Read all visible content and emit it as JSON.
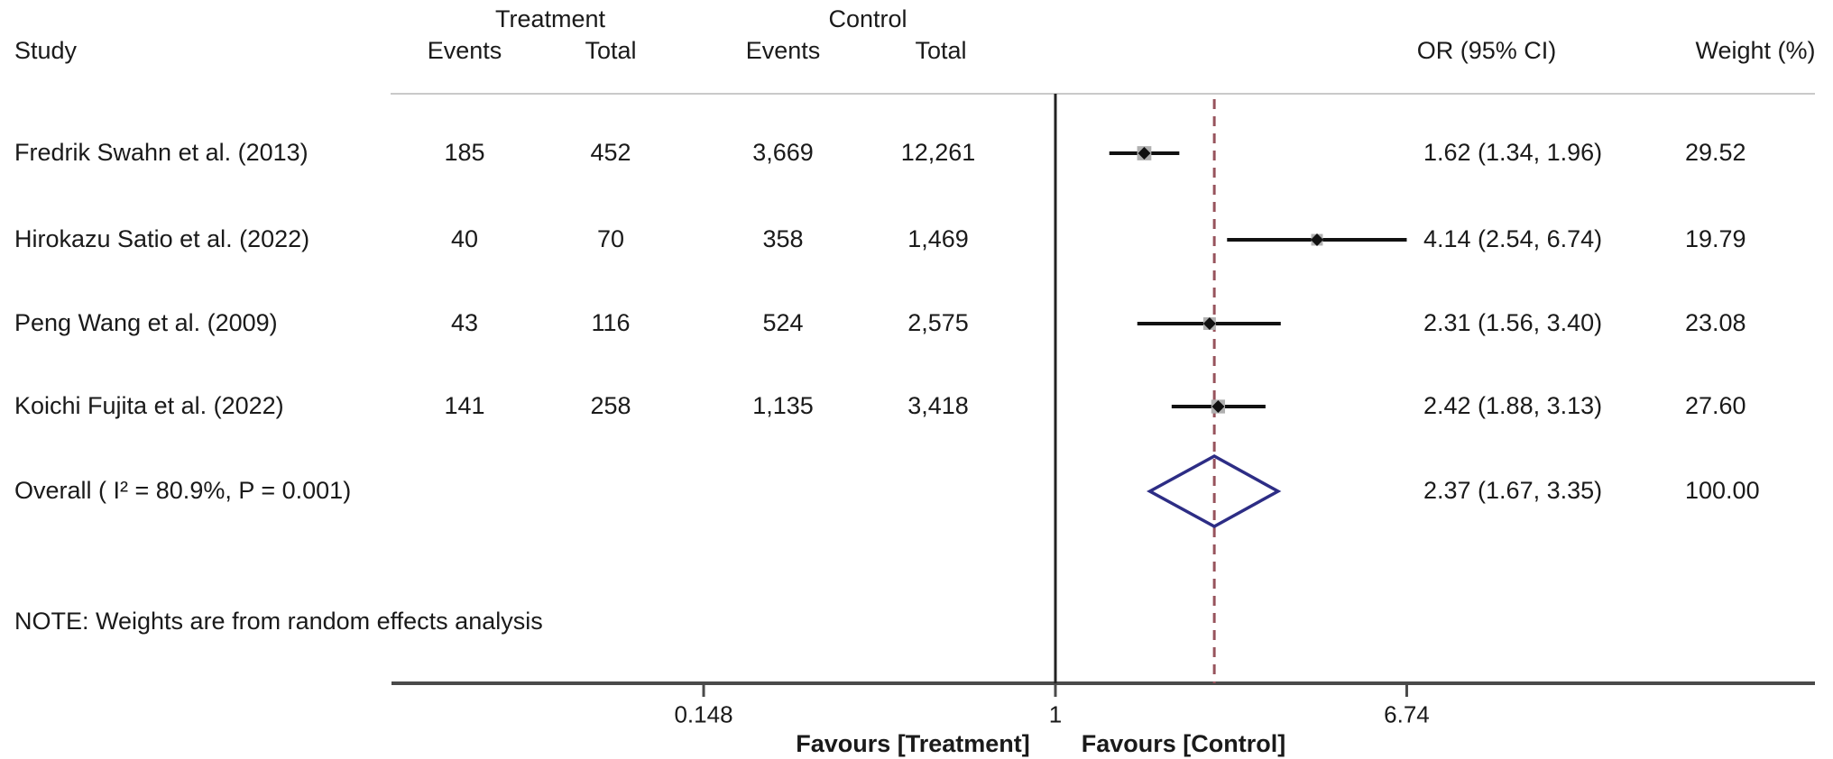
{
  "header": {
    "study": "Study",
    "treatment_group": "Treatment",
    "control_group": "Control",
    "events": "Events",
    "total": "Total",
    "or_ci": "OR (95% CI)",
    "weight": "Weight (%)"
  },
  "chart_data": {
    "type": "forest",
    "effect_measure": "OR",
    "x_axis": {
      "scale": "log",
      "ticks": [
        0.148,
        1,
        6.74
      ],
      "tick_labels": [
        "0.148",
        "1",
        "6.74"
      ],
      "null_value": 1,
      "favours_left": "Favours [Treatment]",
      "favours_right": "Favours [Control]"
    },
    "studies": [
      {
        "name": "Fredrik Swahn et al. (2013)",
        "treatment_events": "185",
        "treatment_total": "452",
        "control_events": "3,669",
        "control_total": "12,261",
        "or": 1.62,
        "ci_low": 1.34,
        "ci_high": 1.96,
        "or_ci_label": "1.62 (1.34, 1.96)",
        "weight": 29.52,
        "weight_label": "29.52"
      },
      {
        "name": "Hirokazu Satio et al. (2022)",
        "treatment_events": "40",
        "treatment_total": "70",
        "control_events": "358",
        "control_total": "1,469",
        "or": 4.14,
        "ci_low": 2.54,
        "ci_high": 6.74,
        "or_ci_label": "4.14 (2.54, 6.74)",
        "weight": 19.79,
        "weight_label": "19.79"
      },
      {
        "name": "Peng Wang et al. (2009)",
        "treatment_events": "43",
        "treatment_total": "116",
        "control_events": "524",
        "control_total": "2,575",
        "or": 2.31,
        "ci_low": 1.56,
        "ci_high": 3.4,
        "or_ci_label": "2.31 (1.56, 3.40)",
        "weight": 23.08,
        "weight_label": "23.08"
      },
      {
        "name": "Koichi Fujita et al. (2022)",
        "treatment_events": "141",
        "treatment_total": "258",
        "control_events": "1,135",
        "control_total": "3,418",
        "or": 2.42,
        "ci_low": 1.88,
        "ci_high": 3.13,
        "or_ci_label": "2.42 (1.88, 3.13)",
        "weight": 27.6,
        "weight_label": "27.60"
      }
    ],
    "overall": {
      "label": "Overall  (  I² = 80.9%, P = 0.001)",
      "or": 2.37,
      "ci_low": 1.67,
      "ci_high": 3.35,
      "or_ci_label": "2.37 (1.67, 3.35)",
      "weight_label": "100.00",
      "i_squared": "80.9%",
      "p_value": "0.001"
    },
    "note": "NOTE: Weights are from random effects analysis"
  },
  "colors": {
    "text": "#1a1a1a",
    "ci_line": "#111111",
    "marker": "#111111",
    "weight_box": "#b0b0b0",
    "overall_diamond": "#2d2d85",
    "dashed_overall_line": "#97535c",
    "null_line": "#222222",
    "axis_line": "#4a4a4a",
    "header_rule": "#c9c9c9"
  }
}
